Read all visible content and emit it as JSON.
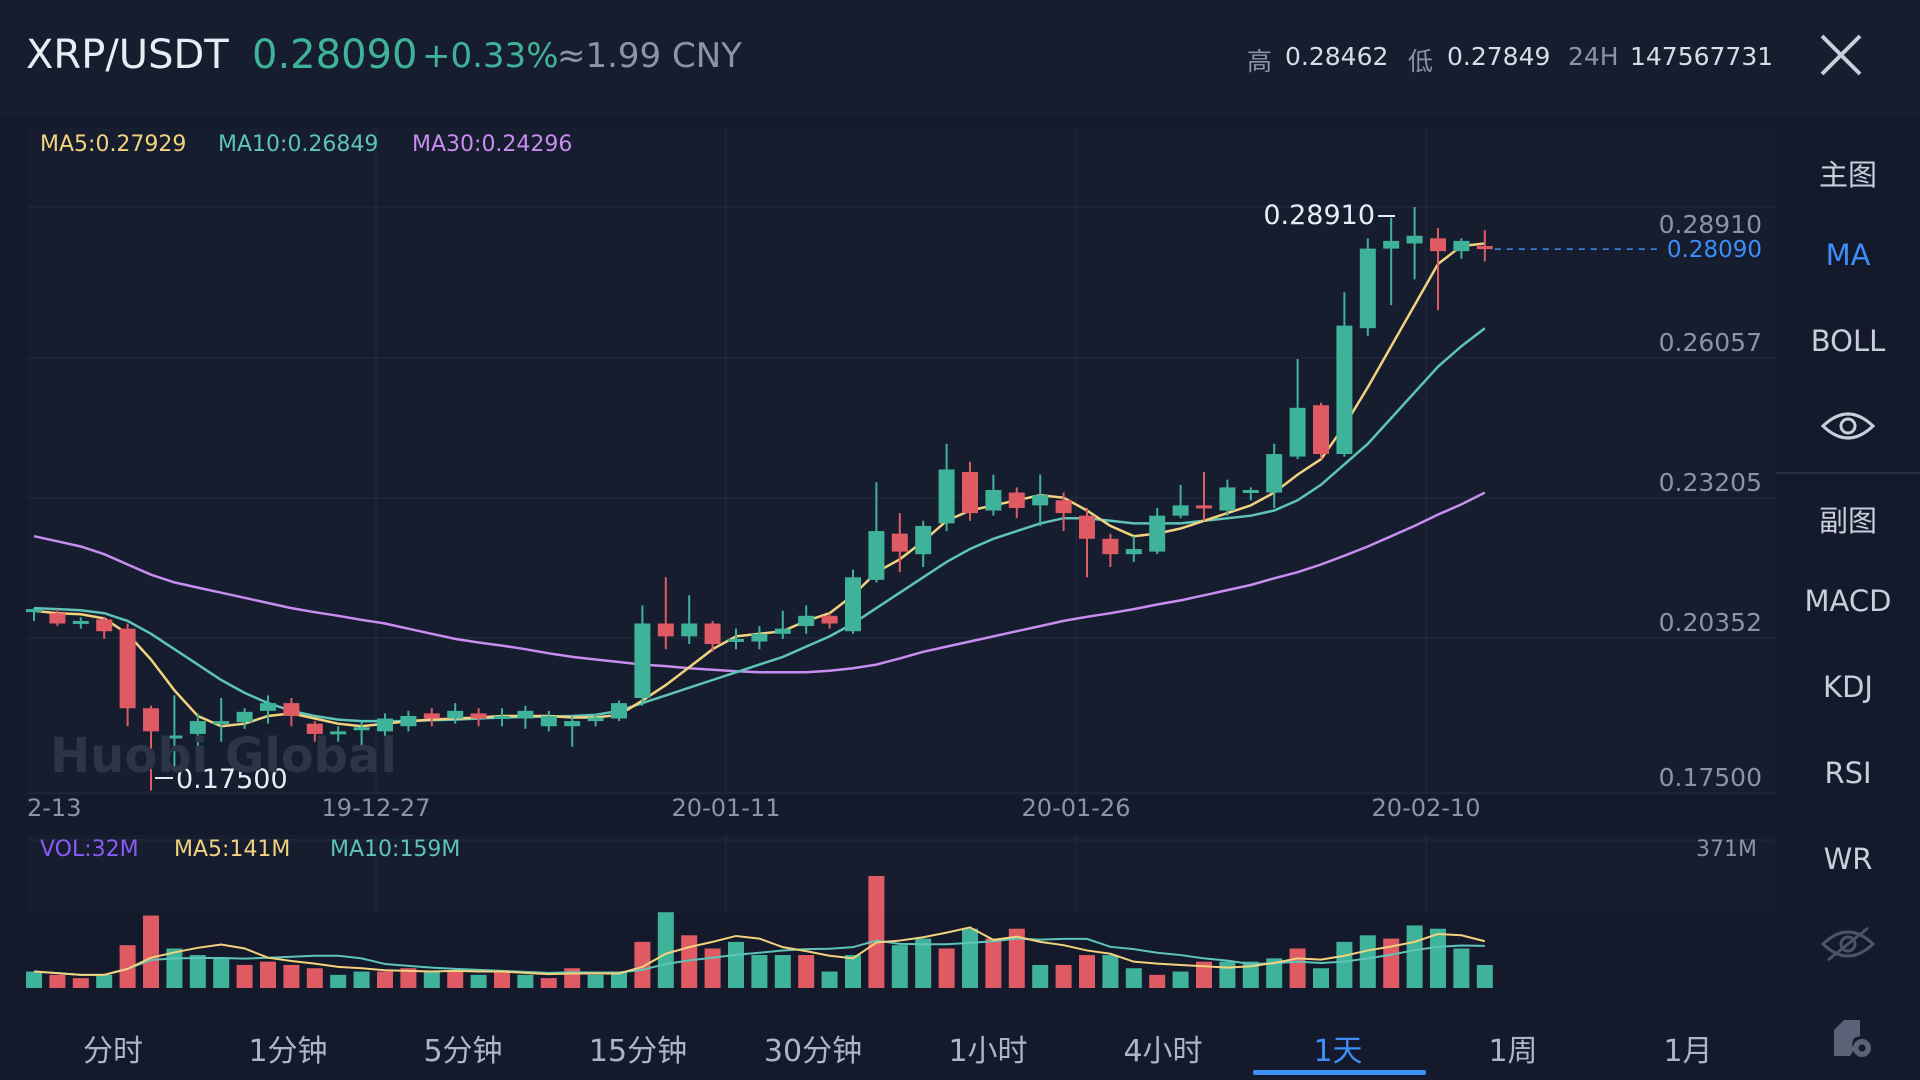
{
  "header": {
    "pair": "XRP/USDT",
    "price": "0.28090",
    "change": "+0.33%",
    "cny": "≈1.99 CNY",
    "high_label": "高",
    "high": "0.28462",
    "low_label": "低",
    "low": "0.27849",
    "vol_label": "24H",
    "vol": "147567731"
  },
  "legend": {
    "ma5": "MA5:0.27929",
    "ma10": "MA10:0.26849",
    "ma30": "MA30:0.24296"
  },
  "vol_legend": {
    "vol": "VOL:32M",
    "ma5": "MA5:141M",
    "ma10": "MA10:159M",
    "max": "371M"
  },
  "watermark": "Huobi Global",
  "sidebar": {
    "main": "主图",
    "ma": "MA",
    "boll": "BOLL",
    "sub": "副图",
    "macd": "MACD",
    "kdj": "KDJ",
    "rsi": "RSI",
    "wr": "WR"
  },
  "tabs": [
    "分时",
    "1分钟",
    "5分钟",
    "15分钟",
    "30分钟",
    "1小时",
    "4小时",
    "1天",
    "1周",
    "1月"
  ],
  "active_tab": "1天",
  "colors": {
    "up": "#3fb39a",
    "down": "#e05a63",
    "ma5": "#f2d27e",
    "ma10": "#5ec3b8",
    "ma30": "#c98cf0",
    "accent": "#3d8ef7"
  },
  "chart_data": {
    "type": "candlestick",
    "y_ticks": [
      "0.28910",
      "0.26057",
      "0.23205",
      "0.20352",
      "0.17500"
    ],
    "current_price_label": "0.28090",
    "max_label": "0.28910",
    "min_label": "0.17500",
    "x_ticks": [
      "2-13",
      "19-12-27",
      "20-01-11",
      "20-01-26",
      "20-02-10"
    ],
    "ylim": [
      0.175,
      0.2891
    ],
    "candles": [
      [
        0.2105,
        0.2108,
        0.2085,
        0.211
      ],
      [
        0.21,
        0.208,
        0.2075,
        0.2108
      ],
      [
        0.208,
        0.2085,
        0.207,
        0.2092
      ],
      [
        0.2088,
        0.2065,
        0.205,
        0.2093
      ],
      [
        0.207,
        0.1915,
        0.188,
        0.208
      ],
      [
        0.1915,
        0.187,
        0.1755,
        0.192
      ],
      [
        0.186,
        0.1862,
        0.18,
        0.194
      ],
      [
        0.1865,
        0.189,
        0.1835,
        0.1905
      ],
      [
        0.189,
        0.189,
        0.185,
        0.1935
      ],
      [
        0.1888,
        0.1908,
        0.1875,
        0.1915
      ],
      [
        0.191,
        0.1925,
        0.1885,
        0.194
      ],
      [
        0.1925,
        0.19,
        0.188,
        0.1935
      ],
      [
        0.1885,
        0.1865,
        0.185,
        0.189
      ],
      [
        0.187,
        0.187,
        0.185,
        0.188
      ],
      [
        0.1875,
        0.1878,
        0.184,
        0.1888
      ],
      [
        0.187,
        0.1895,
        0.186,
        0.1905
      ],
      [
        0.188,
        0.19,
        0.187,
        0.191
      ],
      [
        0.1905,
        0.1895,
        0.188,
        0.1915
      ],
      [
        0.1895,
        0.191,
        0.1885,
        0.1925
      ],
      [
        0.1905,
        0.1895,
        0.188,
        0.1915
      ],
      [
        0.1895,
        0.19,
        0.188,
        0.1915
      ],
      [
        0.1895,
        0.191,
        0.1875,
        0.192
      ],
      [
        0.188,
        0.19,
        0.187,
        0.191
      ],
      [
        0.188,
        0.189,
        0.184,
        0.19
      ],
      [
        0.189,
        0.1897,
        0.188,
        0.1905
      ],
      [
        0.1895,
        0.1925,
        0.189,
        0.193
      ],
      [
        0.1935,
        0.208,
        0.192,
        0.2115
      ],
      [
        0.208,
        0.2055,
        0.203,
        0.217
      ],
      [
        0.2055,
        0.208,
        0.204,
        0.2135
      ],
      [
        0.208,
        0.204,
        0.2025,
        0.2085
      ],
      [
        0.2045,
        0.205,
        0.203,
        0.207
      ],
      [
        0.2045,
        0.206,
        0.203,
        0.2075
      ],
      [
        0.206,
        0.207,
        0.205,
        0.2105
      ],
      [
        0.2075,
        0.2095,
        0.206,
        0.2115
      ],
      [
        0.2095,
        0.208,
        0.207,
        0.21
      ],
      [
        0.2065,
        0.217,
        0.206,
        0.2185
      ],
      [
        0.2165,
        0.226,
        0.216,
        0.2355
      ],
      [
        0.2255,
        0.222,
        0.218,
        0.2295
      ],
      [
        0.2215,
        0.227,
        0.219,
        0.228
      ],
      [
        0.2275,
        0.238,
        0.226,
        0.243
      ],
      [
        0.2375,
        0.2295,
        0.228,
        0.2395
      ],
      [
        0.23,
        0.234,
        0.229,
        0.237
      ],
      [
        0.2335,
        0.2305,
        0.2285,
        0.2345
      ],
      [
        0.231,
        0.233,
        0.227,
        0.237
      ],
      [
        0.232,
        0.2295,
        0.226,
        0.2335
      ],
      [
        0.229,
        0.2245,
        0.217,
        0.2305
      ],
      [
        0.2245,
        0.2215,
        0.219,
        0.2255
      ],
      [
        0.2215,
        0.2225,
        0.22,
        0.225
      ],
      [
        0.222,
        0.229,
        0.2215,
        0.2305
      ],
      [
        0.229,
        0.231,
        0.2285,
        0.235
      ],
      [
        0.231,
        0.2305,
        0.228,
        0.2375
      ],
      [
        0.23,
        0.2345,
        0.229,
        0.236
      ],
      [
        0.2335,
        0.234,
        0.232,
        0.2345
      ],
      [
        0.2335,
        0.241,
        0.2305,
        0.243
      ],
      [
        0.2405,
        0.25,
        0.24,
        0.2595
      ],
      [
        0.2505,
        0.241,
        0.24,
        0.251
      ],
      [
        0.241,
        0.266,
        0.2405,
        0.2725
      ],
      [
        0.2655,
        0.281,
        0.264,
        0.283
      ],
      [
        0.281,
        0.2825,
        0.27,
        0.287
      ],
      [
        0.282,
        0.2835,
        0.275,
        0.2891
      ],
      [
        0.283,
        0.2805,
        0.269,
        0.285
      ],
      [
        0.2805,
        0.2825,
        0.279,
        0.283
      ],
      [
        0.2815,
        0.2809,
        0.2785,
        0.2846
      ]
    ],
    "ma5": [
      0.2105,
      0.21,
      0.2098,
      0.209,
      0.206,
      0.201,
      0.195,
      0.19,
      0.188,
      0.1885,
      0.19,
      0.1905,
      0.1895,
      0.1885,
      0.188,
      0.1885,
      0.189,
      0.1893,
      0.1895,
      0.1897,
      0.19,
      0.19,
      0.19,
      0.1897,
      0.1897,
      0.1902,
      0.193,
      0.196,
      0.1995,
      0.203,
      0.2055,
      0.206,
      0.2065,
      0.2085,
      0.21,
      0.2135,
      0.218,
      0.2205,
      0.224,
      0.228,
      0.23,
      0.231,
      0.232,
      0.233,
      0.2325,
      0.23,
      0.227,
      0.225,
      0.2255,
      0.2265,
      0.228,
      0.2295,
      0.231,
      0.2335,
      0.237,
      0.24,
      0.2465,
      0.254,
      0.262,
      0.27,
      0.278,
      0.2815,
      0.282
    ],
    "ma10": [
      0.211,
      0.2108,
      0.2106,
      0.21,
      0.2085,
      0.206,
      0.203,
      0.2,
      0.197,
      0.1945,
      0.1925,
      0.191,
      0.19,
      0.1893,
      0.189,
      0.189,
      0.189,
      0.1892,
      0.1893,
      0.1895,
      0.1897,
      0.1898,
      0.1899,
      0.19,
      0.1902,
      0.191,
      0.1925,
      0.194,
      0.1955,
      0.197,
      0.1985,
      0.2,
      0.2015,
      0.2035,
      0.2055,
      0.208,
      0.211,
      0.214,
      0.217,
      0.22,
      0.2225,
      0.2245,
      0.226,
      0.2275,
      0.2285,
      0.2285,
      0.228,
      0.2275,
      0.2275,
      0.2275,
      0.228,
      0.2285,
      0.229,
      0.23,
      0.232,
      0.235,
      0.239,
      0.243,
      0.248,
      0.253,
      0.258,
      0.262,
      0.2655
    ],
    "ma30": [
      0.225,
      0.224,
      0.223,
      0.2215,
      0.2195,
      0.2175,
      0.216,
      0.215,
      0.214,
      0.213,
      0.212,
      0.211,
      0.2102,
      0.2095,
      0.2087,
      0.208,
      0.207,
      0.206,
      0.205,
      0.2043,
      0.2037,
      0.203,
      0.2022,
      0.2015,
      0.201,
      0.2005,
      0.2,
      0.1997,
      0.1993,
      0.199,
      0.1987,
      0.1985,
      0.1985,
      0.1985,
      0.1988,
      0.1993,
      0.2,
      0.2012,
      0.2025,
      0.2035,
      0.2045,
      0.2055,
      0.2065,
      0.2075,
      0.2085,
      0.2093,
      0.21,
      0.2108,
      0.2117,
      0.2125,
      0.2135,
      0.2145,
      0.2155,
      0.2168,
      0.218,
      0.2195,
      0.2212,
      0.223,
      0.225,
      0.227,
      0.2292,
      0.2312,
      0.2335
    ],
    "volume": [
      0.05,
      0.04,
      0.03,
      0.04,
      0.13,
      0.22,
      0.12,
      0.1,
      0.09,
      0.07,
      0.08,
      0.07,
      0.06,
      0.04,
      0.05,
      0.05,
      0.06,
      0.05,
      0.05,
      0.04,
      0.05,
      0.04,
      0.03,
      0.06,
      0.04,
      0.05,
      0.14,
      0.23,
      0.16,
      0.12,
      0.14,
      0.1,
      0.1,
      0.1,
      0.05,
      0.1,
      0.34,
      0.13,
      0.15,
      0.12,
      0.18,
      0.15,
      0.18,
      0.07,
      0.07,
      0.1,
      0.1,
      0.06,
      0.04,
      0.05,
      0.08,
      0.08,
      0.08,
      0.09,
      0.12,
      0.06,
      0.14,
      0.16,
      0.15,
      0.19,
      0.18,
      0.12,
      0.07
    ],
    "vol_up": [
      true,
      false,
      false,
      true,
      false,
      false,
      true,
      true,
      true,
      false,
      false,
      false,
      false,
      true,
      true,
      false,
      false,
      true,
      false,
      true,
      false,
      true,
      false,
      false,
      true,
      true,
      false,
      true,
      false,
      false,
      true,
      true,
      true,
      false,
      true,
      true,
      false,
      true,
      true,
      false,
      true,
      false,
      false,
      true,
      false,
      false,
      true,
      true,
      false,
      true,
      false,
      true,
      true,
      true,
      false,
      true,
      true,
      true,
      false,
      true,
      true,
      true,
      true
    ]
  }
}
